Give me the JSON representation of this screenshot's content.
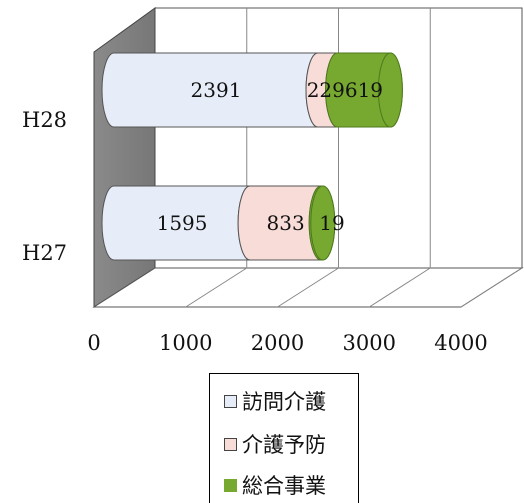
{
  "chart_data": {
    "type": "bar",
    "orientation": "horizontal",
    "stacked": true,
    "style": "3d-cylinder",
    "categories": [
      "H28",
      "H27"
    ],
    "series": [
      {
        "name": "訪問介護",
        "values": [
          2391,
          1595
        ],
        "color": "#e6edf8"
      },
      {
        "name": "介護予防",
        "values": [
          229,
          833
        ],
        "color": "#f8dcd8"
      },
      {
        "name": "総合事業",
        "values": [
          619,
          19
        ],
        "color": "#77a830"
      }
    ],
    "xlim": [
      0,
      4000
    ],
    "xticks": [
      "0",
      "1000",
      "2000",
      "3000",
      "4000"
    ],
    "grid": true,
    "legend_position": "bottom"
  }
}
